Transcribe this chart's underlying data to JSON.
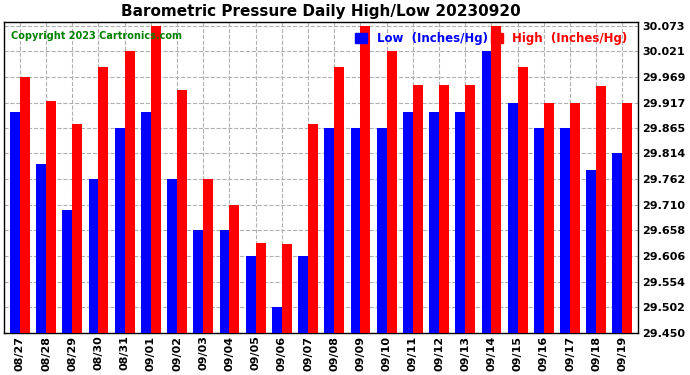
{
  "title": "Barometric Pressure Daily High/Low 20230920",
  "copyright": "Copyright 2023 Cartronics.com",
  "legend_low": "Low  (Inches/Hg)",
  "legend_high": "High  (Inches/Hg)",
  "dates": [
    "08/27",
    "08/28",
    "08/29",
    "08/30",
    "08/31",
    "09/01",
    "09/02",
    "09/03",
    "09/04",
    "09/05",
    "09/06",
    "09/07",
    "09/08",
    "09/09",
    "09/10",
    "09/11",
    "09/12",
    "09/13",
    "09/14",
    "09/15",
    "09/16",
    "09/17",
    "09/18",
    "09/19"
  ],
  "high": [
    29.969,
    29.921,
    29.873,
    29.99,
    30.021,
    30.073,
    29.942,
    29.762,
    29.71,
    29.632,
    29.631,
    29.873,
    29.99,
    30.073,
    30.021,
    29.953,
    29.953,
    29.953,
    30.073,
    29.99,
    29.917,
    29.917,
    29.95,
    29.917
  ],
  "low": [
    29.897,
    29.793,
    29.7,
    29.762,
    29.865,
    29.897,
    29.762,
    29.658,
    29.658,
    29.606,
    29.502,
    29.606,
    29.865,
    29.865,
    29.865,
    29.897,
    29.897,
    29.897,
    30.021,
    29.917,
    29.865,
    29.865,
    29.78,
    29.814
  ],
  "ylim_min": 29.45,
  "ylim_max": 30.073,
  "yticks": [
    29.45,
    29.502,
    29.554,
    29.606,
    29.658,
    29.71,
    29.762,
    29.814,
    29.865,
    29.917,
    29.969,
    30.021,
    30.073
  ],
  "bar_width": 0.38,
  "low_color": "#0000ff",
  "high_color": "#ff0000",
  "bg_color": "#ffffff",
  "grid_color": "#b0b0b0",
  "title_fontsize": 11,
  "tick_fontsize": 8,
  "legend_fontsize": 8.5
}
